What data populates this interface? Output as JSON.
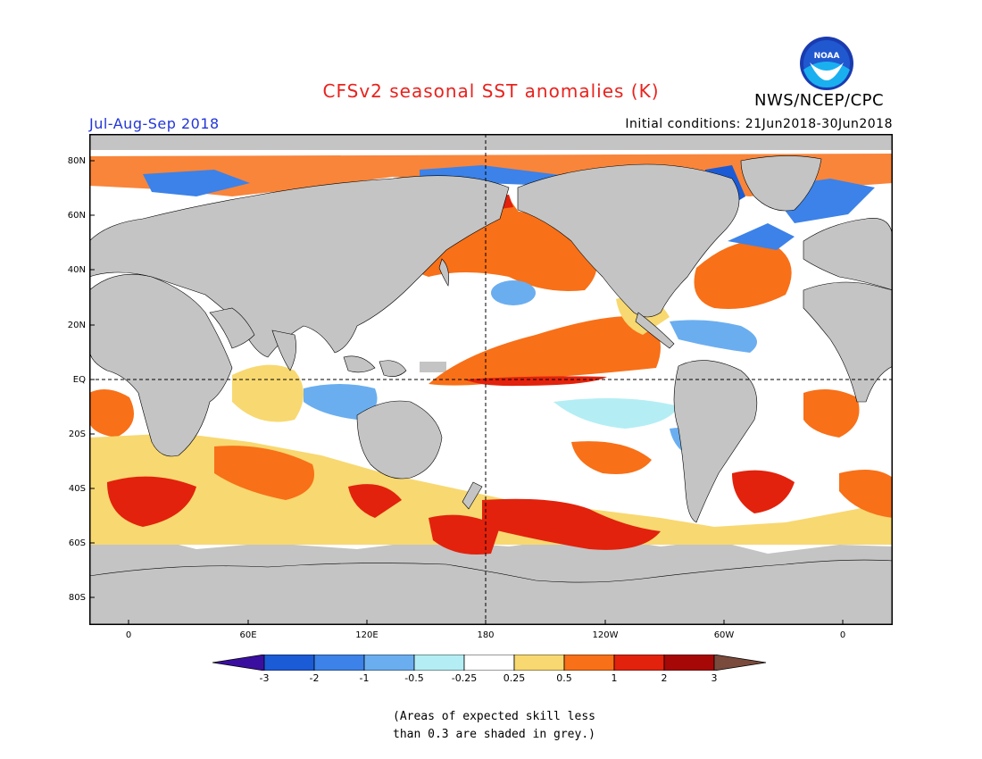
{
  "header": {
    "title": "CFSv2 seasonal SST anomalies (K)",
    "agency": "NWS/NCEP/CPC",
    "season": "Jul-Aug-Sep 2018",
    "initial_conditions": "Initial conditions: 21Jun2018-30Jun2018",
    "logo_text": "NOAA"
  },
  "map": {
    "projection": "cylindrical equidistant",
    "lon_range": [
      -20,
      385
    ],
    "lat_range": [
      -90,
      90
    ],
    "lat_labels": [
      "80N",
      "60N",
      "40N",
      "20N",
      "EQ",
      "20S",
      "40S",
      "60S",
      "80S"
    ],
    "lon_labels": [
      "0",
      "60E",
      "120E",
      "180",
      "120W",
      "60W",
      "0"
    ],
    "land_color": "#c4c4c4",
    "grey_low_skill_color": "#c4c4c4"
  },
  "colorbar": {
    "levels": [
      "-3",
      "-2",
      "-1",
      "-0.5",
      "-0.25",
      "0.25",
      "0.5",
      "1",
      "2",
      "3"
    ],
    "colors": [
      "#3a0fa0",
      "#1c5bd6",
      "#3c82e8",
      "#6aaef0",
      "#b4eef4",
      "#ffffff",
      "#f8d870",
      "#f87018",
      "#e2220c",
      "#a60808",
      "#7a4a3c"
    ]
  },
  "note": {
    "line1": "(Areas of expected skill less",
    "line2": "than 0.3 are shaded in grey.)"
  }
}
